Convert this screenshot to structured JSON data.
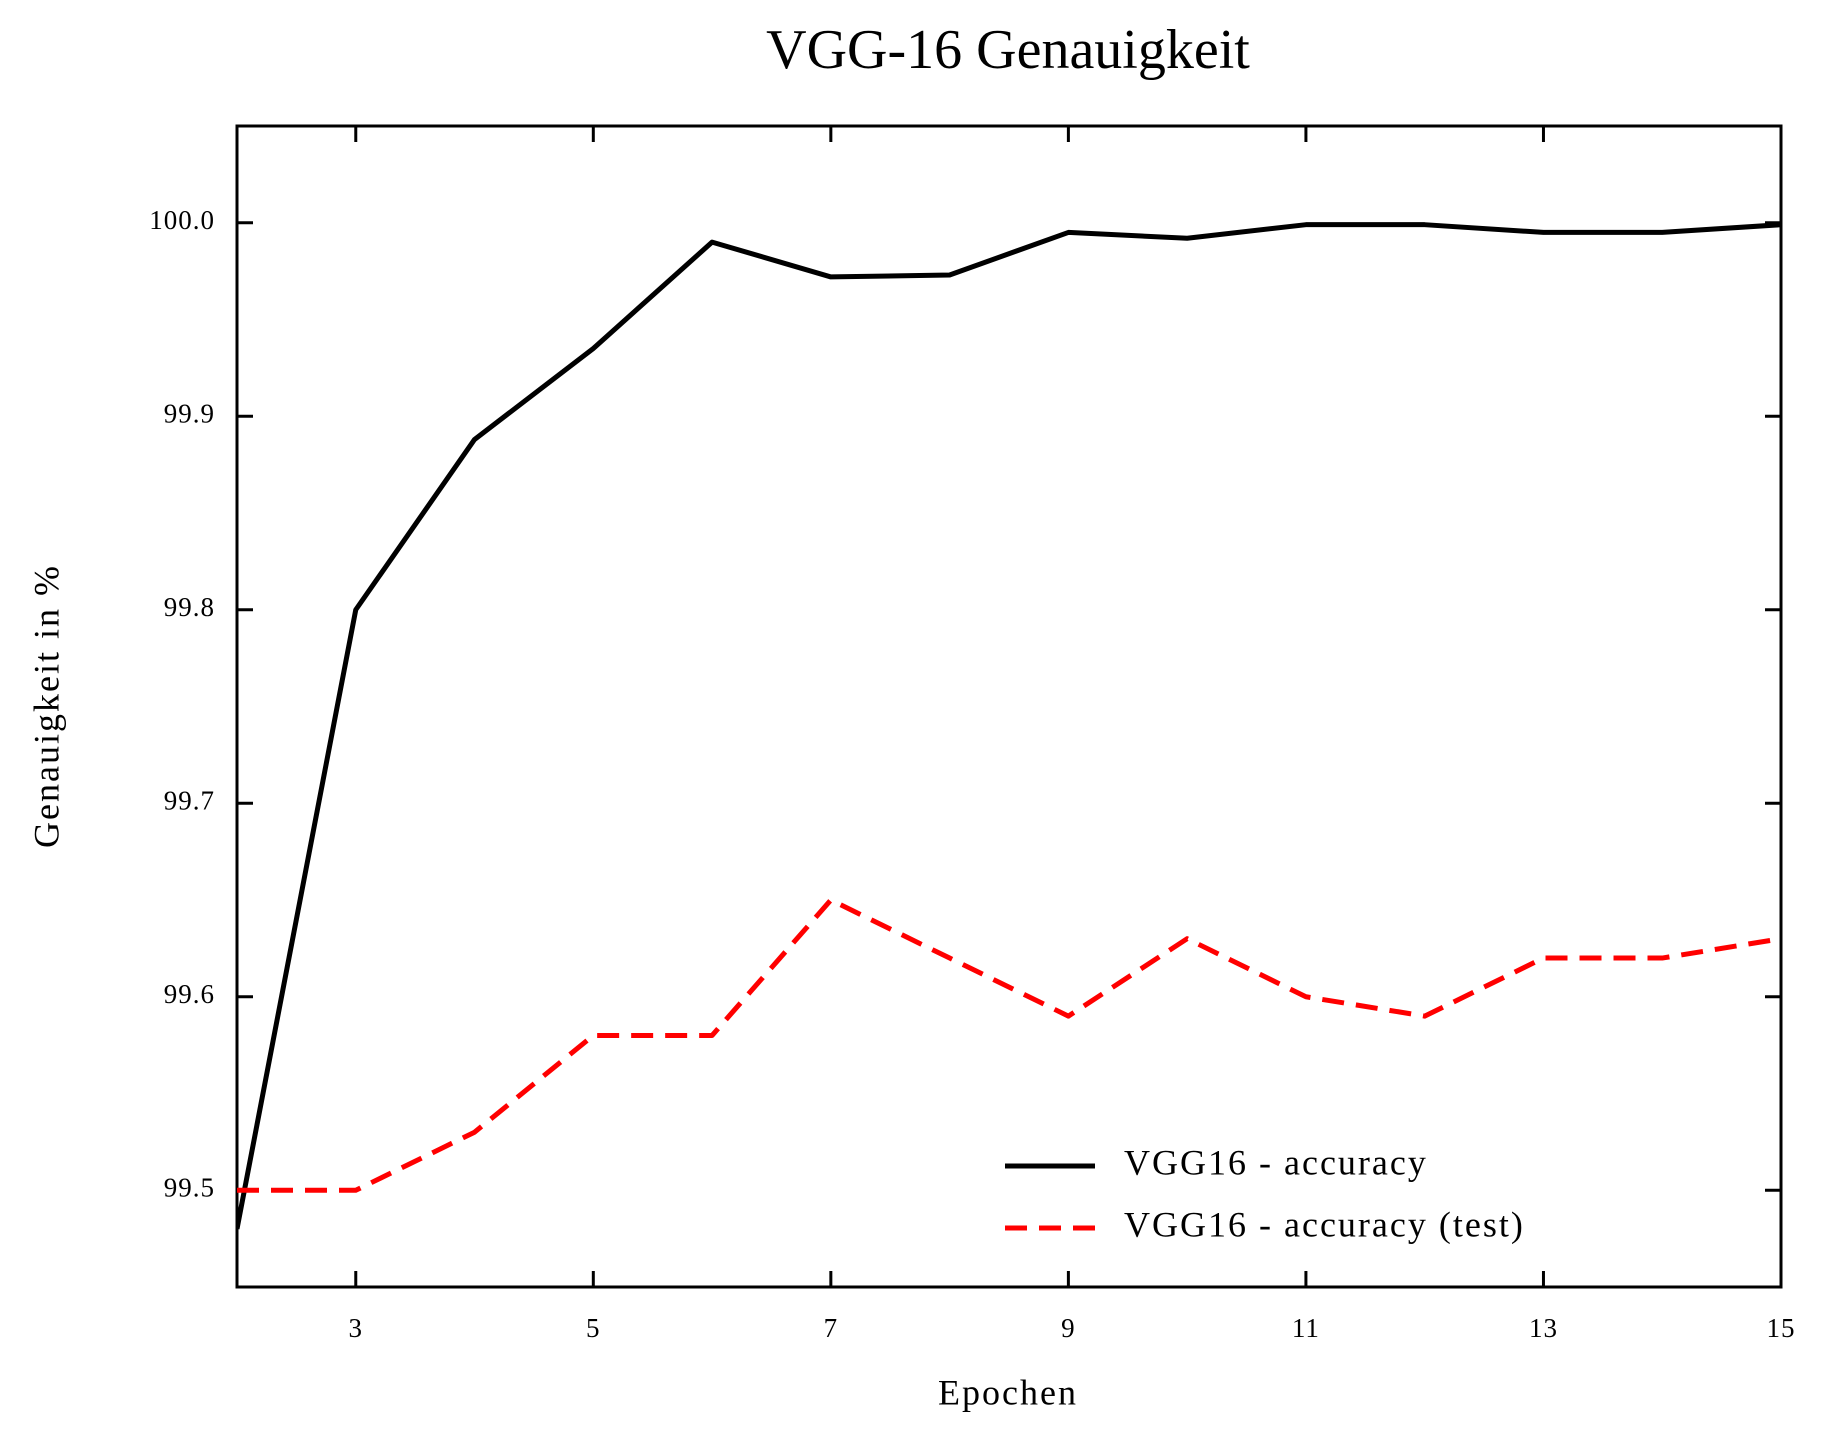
{
  "chart_data": {
    "type": "line",
    "title": "VGG-16 Genauigkeit",
    "x_label": "Epochen",
    "y_label": "Genauigkeit in %",
    "x": [
      2,
      3,
      4,
      5,
      6,
      7,
      8,
      9,
      10,
      11,
      12,
      13,
      14,
      15
    ],
    "series": [
      {
        "name": "VGG16 - accuracy",
        "color": "#000000",
        "dash": "solid",
        "values": [
          99.48,
          99.8,
          99.888,
          99.935,
          99.99,
          99.972,
          99.973,
          99.995,
          99.992,
          99.999,
          99.999,
          99.995,
          99.995,
          99.999
        ]
      },
      {
        "name": "VGG16 - accuracy (test)",
        "color": "#ff0000",
        "dash": "dashed",
        "values": [
          99.5,
          99.5,
          99.53,
          99.58,
          99.58,
          99.65,
          99.62,
          99.59,
          99.63,
          99.6,
          99.59,
          99.62,
          99.62,
          99.63
        ]
      }
    ],
    "xlim": [
      2,
      15
    ],
    "xticks": [
      3,
      5,
      7,
      9,
      11,
      13,
      15
    ],
    "ylim": [
      99.45,
      100.05
    ],
    "yticks": [
      99.5,
      99.6,
      99.7,
      99.8,
      99.9,
      {
        "value": 100,
        "label": "100.0"
      }
    ],
    "grid": false,
    "legend": "lower right"
  }
}
